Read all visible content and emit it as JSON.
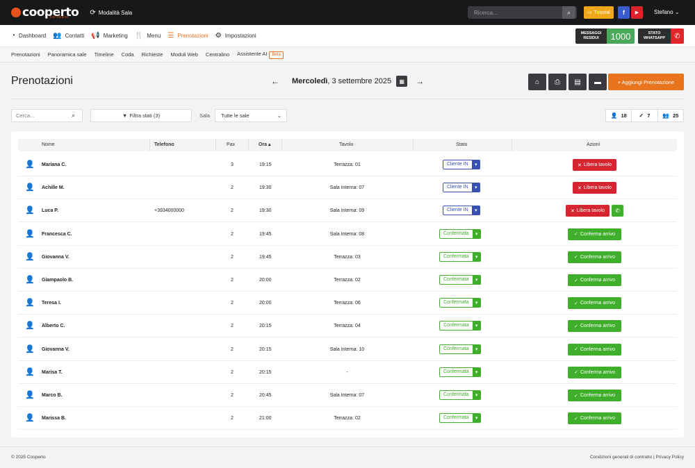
{
  "app": {
    "logo": "cooperto",
    "logo_sub": "software",
    "mode": "Modalità Sala",
    "search_placeholder": "Ricerca...",
    "tutorial": "Tutorial",
    "facebook": "f",
    "user": "Stefano"
  },
  "nav": {
    "items": [
      {
        "label": "Dashboard",
        "icon": "dashboard-icon"
      },
      {
        "label": "Contatti",
        "icon": "users-icon"
      },
      {
        "label": "Marketing",
        "icon": "megaphone-icon"
      },
      {
        "label": "Menu",
        "icon": "cutlery-icon"
      },
      {
        "label": "Prenotazioni",
        "icon": "list-icon"
      },
      {
        "label": "Impostazioni",
        "icon": "gear-icon"
      }
    ],
    "active": "Prenotazioni",
    "messages_label_1": "MESSAGGI",
    "messages_label_2": "RESIDUI",
    "messages_count": "1000",
    "whatsapp_label_1": "STATO",
    "whatsapp_label_2": "WHATSAPP"
  },
  "subnav": {
    "items": [
      "Prenotazioni",
      "Panoramica sale",
      "Timeline",
      "Coda",
      "Richieste",
      "Moduli Web",
      "Centralino"
    ],
    "assistant": "Assistente AI",
    "beta": "Beta"
  },
  "page": {
    "title": "Prenotazioni",
    "date_day": "Mercoledì",
    "date_rest": ", 3 settembre 2025",
    "add_button": "+ Aggiungi Prenotazione"
  },
  "filters": {
    "search_placeholder": "Cerca...",
    "filter_states": "Filtra stati (3)",
    "sala_label": "Sala",
    "sala_value": "Tutte le sale",
    "counts": [
      "18",
      "7",
      "25"
    ]
  },
  "table": {
    "headers": [
      "Nome",
      "Telefono",
      "Pax",
      "Ora",
      "Tavolo",
      "Stato",
      "Azioni"
    ],
    "rows": [
      {
        "name": "Mariana C.",
        "phone": "",
        "pax": "3",
        "time": "19:15",
        "table": "Terrazza: 01",
        "status": "Cliente IN",
        "status_type": "in",
        "action": "Libera tavolo",
        "action_type": "red"
      },
      {
        "name": "Achille M.",
        "phone": "",
        "pax": "2",
        "time": "19:30",
        "table": "Sala Interna: 07",
        "status": "Cliente IN",
        "status_type": "in",
        "action": "Libera tavolo",
        "action_type": "red"
      },
      {
        "name": "Luca P.",
        "phone": "+3934000000",
        "pax": "2",
        "time": "19:30",
        "table": "Sala Interna: 09",
        "status": "Cliente IN",
        "status_type": "in",
        "action": "Libera tavolo",
        "action_type": "red",
        "whatsapp": true
      },
      {
        "name": "Francesca C.",
        "phone": "",
        "pax": "2",
        "time": "19:45",
        "table": "Sala Interna: 08",
        "status": "Confermata",
        "status_type": "ok",
        "action": "Conferma arrivo",
        "action_type": "green"
      },
      {
        "name": "Giovanna V.",
        "phone": "",
        "pax": "2",
        "time": "19:45",
        "table": "Terrazza: 03",
        "status": "Confermata",
        "status_type": "ok",
        "action": "Conferma arrivo",
        "action_type": "green"
      },
      {
        "name": "Giampaolo B.",
        "phone": "",
        "pax": "2",
        "time": "20:00",
        "table": "Terrazza: 02",
        "status": "Confermata",
        "status_type": "ok",
        "action": "Conferma arrivo",
        "action_type": "green"
      },
      {
        "name": "Teresa I.",
        "phone": "",
        "pax": "2",
        "time": "20:00",
        "table": "Terrazza: 06",
        "status": "Confermata",
        "status_type": "ok",
        "action": "Conferma arrivo",
        "action_type": "green"
      },
      {
        "name": "Alberto C.",
        "phone": "",
        "pax": "2",
        "time": "20:15",
        "table": "Terrazza: 04",
        "status": "Confermata",
        "status_type": "ok",
        "action": "Conferma arrivo",
        "action_type": "green"
      },
      {
        "name": "Giovanna V.",
        "phone": "",
        "pax": "2",
        "time": "20:15",
        "table": "Sala Interna: 10",
        "status": "Confermata",
        "status_type": "ok",
        "action": "Conferma arrivo",
        "action_type": "green"
      },
      {
        "name": "Marisa T.",
        "phone": "",
        "pax": "2",
        "time": "20:15",
        "table": "-",
        "status": "Confermata",
        "status_type": "ok",
        "action": "Conferma arrivo",
        "action_type": "green"
      },
      {
        "name": "Marco B.",
        "phone": "",
        "pax": "2",
        "time": "20:45",
        "table": "Sala Interna: 07",
        "status": "Confermata",
        "status_type": "ok",
        "action": "Conferma arrivo",
        "action_type": "green"
      },
      {
        "name": "Marissa B.",
        "phone": "",
        "pax": "2",
        "time": "21:00",
        "table": "Terrazza: 02",
        "status": "Confermata",
        "status_type": "ok",
        "action": "Conferma arrivo",
        "action_type": "green"
      }
    ]
  },
  "footer": {
    "copyright": "© 2025 Cooperto",
    "links": "Condizioni generali di contratto | Privacy Policy"
  },
  "colors": {
    "accent": "#e8741e",
    "status_in": "#3a4fb2",
    "status_ok": "#3fae2a",
    "danger": "#d62530"
  }
}
